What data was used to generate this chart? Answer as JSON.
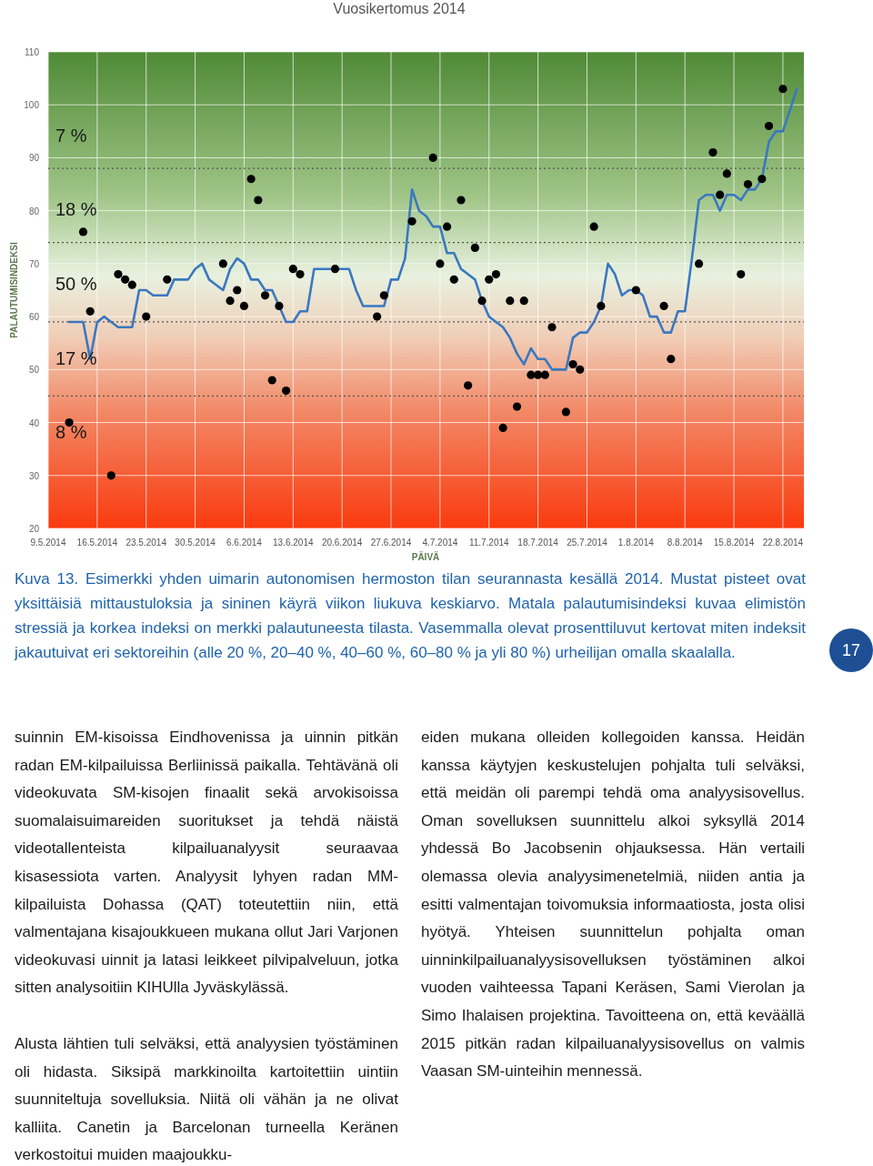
{
  "chart_data": {
    "type": "scatter",
    "xlabel": "PÄIVÄ",
    "ylabel": "PALAUTUMISINDEKSI",
    "xlim": [
      "2014-05-09",
      "2014-08-25"
    ],
    "ylim": [
      20,
      110
    ],
    "xticks": [
      {
        "value": "2014-05-09",
        "label": "9.5.2014"
      },
      {
        "value": "2014-05-16",
        "label": "16.5.2014"
      },
      {
        "value": "2014-05-23",
        "label": "23.5.2014"
      },
      {
        "value": "2014-05-30",
        "label": "30.5.2014"
      },
      {
        "value": "2014-06-06",
        "label": "6.6.2014"
      },
      {
        "value": "2014-06-13",
        "label": "13.6.2014"
      },
      {
        "value": "2014-06-20",
        "label": "20.6.2014"
      },
      {
        "value": "2014-06-27",
        "label": "27.6.2014"
      },
      {
        "value": "2014-07-04",
        "label": "4.7.2014"
      },
      {
        "value": "2014-07-11",
        "label": "11.7.2014"
      },
      {
        "value": "2014-07-18",
        "label": "18.7.2014"
      },
      {
        "value": "2014-07-25",
        "label": "25.7.2014"
      },
      {
        "value": "2014-08-01",
        "label": "1.8.2014"
      },
      {
        "value": "2014-08-08",
        "label": "8.8.2014"
      },
      {
        "value": "2014-08-15",
        "label": "15.8.2014"
      },
      {
        "value": "2014-08-22",
        "label": "22.8.2014"
      }
    ],
    "yticks": [
      20,
      30,
      40,
      50,
      60,
      70,
      80,
      90,
      100,
      110
    ],
    "grid": true,
    "series": [
      {
        "type": "line",
        "color": "#3a78c0",
        "marker": "none",
        "line_style": "solid",
        "x": [
          "2014-05-12",
          "2014-05-13",
          "2014-05-14",
          "2014-05-15",
          "2014-05-16",
          "2014-05-17",
          "2014-05-18",
          "2014-05-19",
          "2014-05-20",
          "2014-05-21",
          "2014-05-22",
          "2014-05-23",
          "2014-05-24",
          "2014-05-25",
          "2014-05-26",
          "2014-05-27",
          "2014-05-28",
          "2014-05-29",
          "2014-05-30",
          "2014-05-31",
          "2014-06-01",
          "2014-06-02",
          "2014-06-03",
          "2014-06-04",
          "2014-06-05",
          "2014-06-06",
          "2014-06-07",
          "2014-06-08",
          "2014-06-09",
          "2014-06-10",
          "2014-06-11",
          "2014-06-12",
          "2014-06-13",
          "2014-06-14",
          "2014-06-15",
          "2014-06-16",
          "2014-06-17",
          "2014-06-18",
          "2014-06-19",
          "2014-06-20",
          "2014-06-21",
          "2014-06-22",
          "2014-06-23",
          "2014-06-24",
          "2014-06-25",
          "2014-06-26",
          "2014-06-27",
          "2014-06-28",
          "2014-06-29",
          "2014-06-30",
          "2014-07-01",
          "2014-07-02",
          "2014-07-03",
          "2014-07-04",
          "2014-07-05",
          "2014-07-06",
          "2014-07-07",
          "2014-07-08",
          "2014-07-09",
          "2014-07-10",
          "2014-07-11",
          "2014-07-12",
          "2014-07-13",
          "2014-07-14",
          "2014-07-15",
          "2014-07-16",
          "2014-07-17",
          "2014-07-18",
          "2014-07-19",
          "2014-07-20",
          "2014-07-21",
          "2014-07-22",
          "2014-07-23",
          "2014-07-24",
          "2014-07-25",
          "2014-07-26",
          "2014-07-27",
          "2014-07-28",
          "2014-07-29",
          "2014-07-30",
          "2014-07-31",
          "2014-08-01",
          "2014-08-02",
          "2014-08-03",
          "2014-08-04",
          "2014-08-05",
          "2014-08-06",
          "2014-08-07",
          "2014-08-08",
          "2014-08-09",
          "2014-08-10",
          "2014-08-11",
          "2014-08-12",
          "2014-08-13",
          "2014-08-14",
          "2014-08-15",
          "2014-08-16",
          "2014-08-17",
          "2014-08-18",
          "2014-08-19",
          "2014-08-20",
          "2014-08-21",
          "2014-08-22",
          "2014-08-23",
          "2014-08-24"
        ],
        "values": [
          59,
          59,
          59,
          52,
          59,
          60,
          59,
          58,
          58,
          58,
          65,
          65,
          64,
          64,
          64,
          67,
          67,
          67,
          69,
          70,
          67,
          66,
          65,
          69,
          71,
          70,
          67,
          67,
          65,
          65,
          62,
          59,
          59,
          61,
          61,
          69,
          69,
          69,
          69,
          69,
          69,
          65,
          62,
          62,
          62,
          62,
          67,
          67,
          71,
          84,
          80,
          79,
          77,
          77,
          72,
          72,
          69,
          68,
          67,
          63,
          60,
          59,
          58,
          56,
          53,
          51,
          54,
          52,
          52,
          50,
          50,
          50,
          56,
          57,
          57,
          59,
          62,
          70,
          68,
          64,
          65,
          65,
          64,
          60,
          60,
          57,
          57,
          61,
          61,
          71,
          82,
          83,
          83,
          80,
          83,
          83,
          82,
          84,
          84,
          86,
          93,
          95,
          95,
          99,
          103
        ]
      },
      {
        "color": "#000000",
        "marker": "circle",
        "x": [
          "2014-05-12",
          "2014-05-14",
          "2014-05-15",
          "2014-05-18",
          "2014-05-19",
          "2014-05-20",
          "2014-05-21",
          "2014-05-23",
          "2014-05-26",
          "2014-06-03",
          "2014-06-04",
          "2014-06-05",
          "2014-06-06",
          "2014-06-07",
          "2014-06-08",
          "2014-06-09",
          "2014-06-10",
          "2014-06-11",
          "2014-06-12",
          "2014-06-13",
          "2014-06-14",
          "2014-06-19",
          "2014-06-25",
          "2014-06-26",
          "2014-06-30",
          "2014-07-03",
          "2014-07-04",
          "2014-07-05",
          "2014-07-06",
          "2014-07-07",
          "2014-07-08",
          "2014-07-09",
          "2014-07-10",
          "2014-07-11",
          "2014-07-12",
          "2014-07-13",
          "2014-07-14",
          "2014-07-15",
          "2014-07-16",
          "2014-07-17",
          "2014-07-18",
          "2014-07-19",
          "2014-07-20",
          "2014-07-22",
          "2014-07-23",
          "2014-07-24",
          "2014-07-26",
          "2014-07-27",
          "2014-08-01",
          "2014-08-05",
          "2014-08-06",
          "2014-08-10",
          "2014-08-12",
          "2014-08-13",
          "2014-08-14",
          "2014-08-16",
          "2014-08-17",
          "2014-08-19",
          "2014-08-20",
          "2014-08-22"
        ],
        "values": [
          40,
          76,
          61,
          30,
          68,
          67,
          66,
          60,
          67,
          70,
          63,
          65,
          62,
          86,
          82,
          64,
          48,
          62,
          46,
          69,
          68,
          69,
          60,
          64,
          78,
          90,
          70,
          77,
          67,
          82,
          47,
          73,
          63,
          67,
          68,
          39,
          63,
          43,
          63,
          49,
          49,
          49,
          58,
          42,
          51,
          50,
          77,
          62,
          65,
          62,
          52,
          70,
          91,
          83,
          87,
          68,
          85,
          86,
          96,
          103
        ]
      }
    ],
    "ref_lines": [
      {
        "axis": "y",
        "value": 88,
        "color": "#555555",
        "line_style": "dotted"
      },
      {
        "axis": "y",
        "value": 74,
        "color": "#555555",
        "line_style": "dotted"
      },
      {
        "axis": "y",
        "value": 59,
        "color": "#555555",
        "line_style": "dotted"
      },
      {
        "axis": "y",
        "value": 45,
        "color": "#555555",
        "line_style": "dotted"
      }
    ],
    "annotations": [
      "Vuosikertomus 2014",
      "Kuva 13. Esimerkki yhden uimarin autonomisen hermoston tilan seurannasta kesällä 2014. Mustat pisteet ovat yksittäisiä mittaustuloksia ja sininen käyrä viikon liukuva keskiarvo. Matala palautumisindeksi kuvaa elimistön stressiä ja korkea indeksi on merkki palautuneesta tilasta. Vasemmalla olevat prosenttiluvut kertovat miten indeksit jakautuivat eri sektoreihin (alle 20 %, 20–40 %, 40–60 %, 60–80 % ja yli 80 %) urheilijan omalla skaalalla.",
      "17",
      "suinnin EM-kisoissa Eindhovenissa ja uinnin pitkän radan EM-kilpailuissa Berliinissä paikalla. Tehtävänä oli videokuvata SM-kisojen finaalit sekä arvokisoissa suomalaisuimareiden suoritukset ja tehdä näistä videotallenteista kilpailuanalyysit seuraavaa kisasessiota varten. Analyysit lyhyen radan MM-kilpailuista Dohassa (QAT) toteutettiin niin, että valmentajana kisajoukkueen mukana ollut Jari Varjonen videokuvasi uinnit ja latasi leikkeet pilvipalveluun, jotka sitten analysoitiin KIHUlla Jyväskylässä.",
      "Alusta lähtien tuli selväksi, että analyysien työstäminen oli hidasta. Siksipä markkinoilta kartoitettiin uintiin suunniteltuja sovelluksia. Niitä oli vähän ja ne olivat kalliita. Canetin ja Barcelonan turneella Keränen verkostoitui muiden maajoukku-",
      "eiden mukana olleiden kollegoiden kanssa. Heidän kanssa käytyjen keskustelujen pohjalta tuli selväksi, että meidän oli parempi tehdä oma analyysisovellus. Oman sovelluksen suunnittelu alkoi syksyllä 2014 yhdessä Bo Jacobsenin ohjauksessa. Hän vertaili olemassa olevia analyysimenetelmiä, niiden antia ja esitti valmentajan toivomuksia informaatiosta, josta olisi hyötyä. Yhteisen suunnittelun pohjalta oman uinninkilpailuanalyysisovelluksen työstäminen alkoi vuoden vaihteessa Tapani Keräsen, Sami Vierolan ja Simo Ihalaisen projektina. Tavoitteena on, että keväällä 2015 pitkän radan kilpailuanalyysisovellus on valmis Vaasan SM-uinteihin mennessä.",
      "7 %",
      "18 %",
      "50 %",
      "17 %",
      "8 %"
    ]
  }
}
